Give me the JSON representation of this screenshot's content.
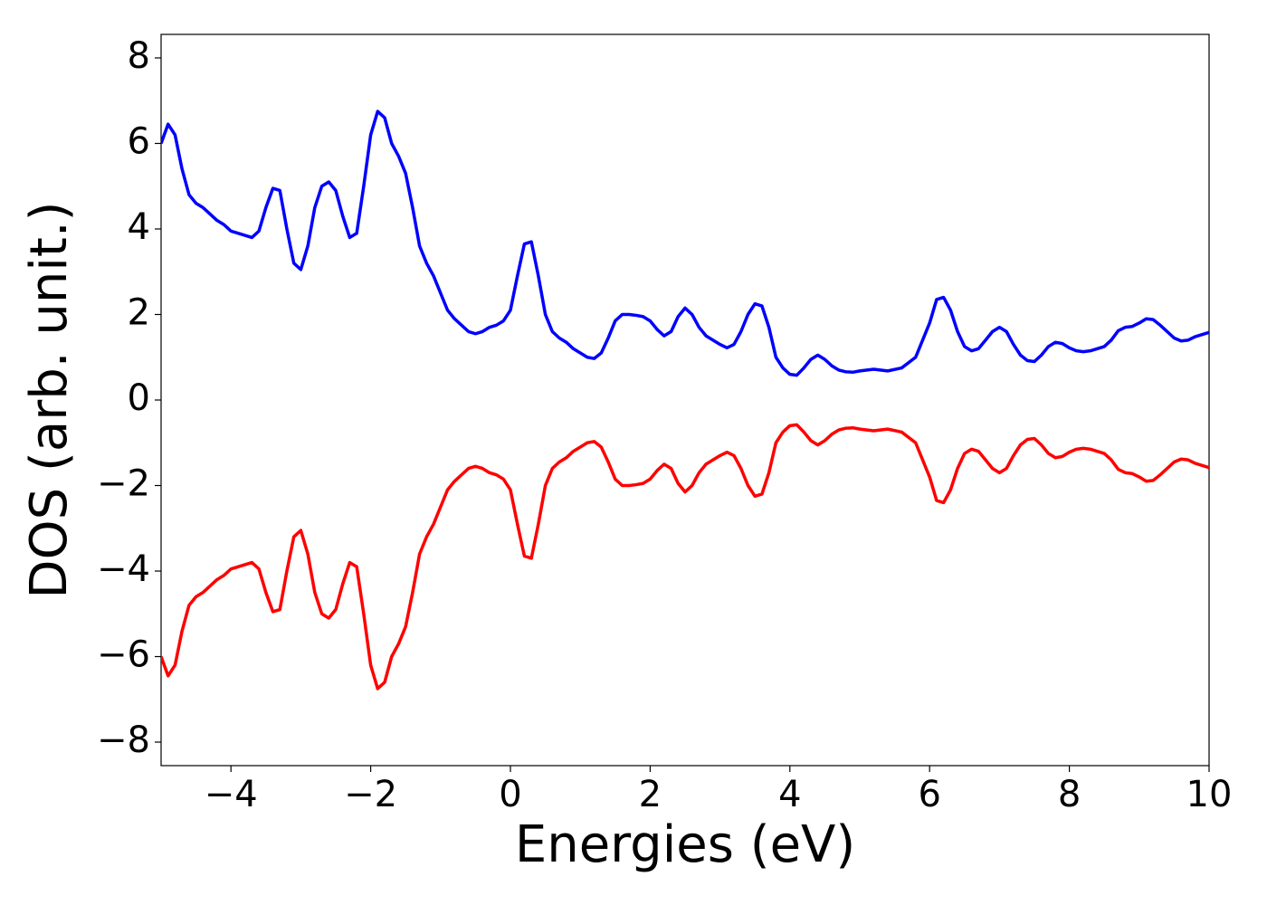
{
  "chart_data": {
    "type": "line",
    "x_label": "Energies (eV)",
    "y_label": "DOS (arb. unit.)",
    "xlim": [
      -5,
      10
    ],
    "ylim": [
      -8.55,
      8.55
    ],
    "xticks": [
      {
        "value": -4,
        "label": "−4"
      },
      {
        "value": -2,
        "label": "−2"
      },
      0,
      2,
      4,
      6,
      8,
      10
    ],
    "yticks": [
      {
        "value": -8,
        "label": "−8"
      },
      {
        "value": -6,
        "label": "−6"
      },
      {
        "value": -4,
        "label": "−4"
      },
      {
        "value": -2,
        "label": "−2"
      },
      0,
      2,
      4,
      6,
      8
    ],
    "grid": false,
    "x": [
      -5.0,
      -4.9,
      -4.8,
      -4.7,
      -4.6,
      -4.5,
      -4.4,
      -4.3,
      -4.2,
      -4.1,
      -4.0,
      -3.9,
      -3.8,
      -3.7,
      -3.6,
      -3.5,
      -3.4,
      -3.3,
      -3.2,
      -3.1,
      -3.0,
      -2.9,
      -2.8,
      -2.7,
      -2.6,
      -2.5,
      -2.4,
      -2.3,
      -2.2,
      -2.1,
      -2.0,
      -1.9,
      -1.8,
      -1.7,
      -1.6,
      -1.5,
      -1.4,
      -1.3,
      -1.2,
      -1.1,
      -1.0,
      -0.9,
      -0.8,
      -0.7,
      -0.6,
      -0.5,
      -0.4,
      -0.3,
      -0.2,
      -0.1,
      0.0,
      0.1,
      0.2,
      0.3,
      0.4,
      0.5,
      0.6,
      0.7,
      0.8,
      0.9,
      1.0,
      1.1,
      1.2,
      1.3,
      1.4,
      1.5,
      1.6,
      1.7,
      1.8,
      1.9,
      2.0,
      2.1,
      2.2,
      2.3,
      2.4,
      2.5,
      2.6,
      2.7,
      2.8,
      2.9,
      3.0,
      3.1,
      3.2,
      3.3,
      3.4,
      3.5,
      3.6,
      3.7,
      3.8,
      3.9,
      4.0,
      4.1,
      4.2,
      4.3,
      4.4,
      4.5,
      4.6,
      4.7,
      4.8,
      4.9,
      5.0,
      5.2,
      5.4,
      5.6,
      5.8,
      6.0,
      6.1,
      6.2,
      6.3,
      6.4,
      6.5,
      6.6,
      6.7,
      6.8,
      6.9,
      7.0,
      7.1,
      7.2,
      7.3,
      7.4,
      7.5,
      7.6,
      7.7,
      7.8,
      7.9,
      8.0,
      8.1,
      8.2,
      8.3,
      8.4,
      8.5,
      8.6,
      8.7,
      8.8,
      8.9,
      9.0,
      9.1,
      9.2,
      9.3,
      9.4,
      9.5,
      9.6,
      9.7,
      9.8,
      9.9,
      10.0
    ],
    "series": [
      {
        "color": "#0000ff",
        "values": [
          6.0,
          6.45,
          6.2,
          5.4,
          4.8,
          4.6,
          4.5,
          4.35,
          4.2,
          4.1,
          3.95,
          3.9,
          3.85,
          3.8,
          3.95,
          4.5,
          4.95,
          4.9,
          4.0,
          3.2,
          3.05,
          3.6,
          4.5,
          5.0,
          5.1,
          4.9,
          4.3,
          3.8,
          3.9,
          5.0,
          6.2,
          6.75,
          6.6,
          6.0,
          5.7,
          5.3,
          4.5,
          3.6,
          3.2,
          2.9,
          2.5,
          2.1,
          1.9,
          1.75,
          1.6,
          1.55,
          1.6,
          1.7,
          1.75,
          1.85,
          2.1,
          2.9,
          3.65,
          3.7,
          2.9,
          2.0,
          1.6,
          1.45,
          1.35,
          1.2,
          1.1,
          1.0,
          0.97,
          1.1,
          1.45,
          1.85,
          2.0,
          2.0,
          1.98,
          1.95,
          1.85,
          1.65,
          1.5,
          1.6,
          1.95,
          2.15,
          2.0,
          1.7,
          1.5,
          1.4,
          1.3,
          1.22,
          1.3,
          1.6,
          2.0,
          2.25,
          2.2,
          1.7,
          1.0,
          0.75,
          0.6,
          0.58,
          0.75,
          0.95,
          1.05,
          0.95,
          0.8,
          0.7,
          0.66,
          0.65,
          0.68,
          0.72,
          0.68,
          0.75,
          1.0,
          1.8,
          2.35,
          2.4,
          2.1,
          1.6,
          1.25,
          1.15,
          1.2,
          1.4,
          1.6,
          1.7,
          1.6,
          1.3,
          1.05,
          0.92,
          0.9,
          1.05,
          1.25,
          1.35,
          1.32,
          1.22,
          1.15,
          1.13,
          1.15,
          1.2,
          1.25,
          1.4,
          1.62,
          1.7,
          1.72,
          1.8,
          1.9,
          1.88,
          1.75,
          1.6,
          1.45,
          1.38,
          1.4,
          1.48,
          1.53,
          1.58
        ]
      },
      {
        "color": "#ff0000",
        "values": [
          -6.0,
          -6.45,
          -6.2,
          -5.4,
          -4.8,
          -4.6,
          -4.5,
          -4.35,
          -4.2,
          -4.1,
          -3.95,
          -3.9,
          -3.85,
          -3.8,
          -3.95,
          -4.5,
          -4.95,
          -4.9,
          -4.0,
          -3.2,
          -3.05,
          -3.6,
          -4.5,
          -5.0,
          -5.1,
          -4.9,
          -4.3,
          -3.8,
          -3.9,
          -5.0,
          -6.2,
          -6.75,
          -6.6,
          -6.0,
          -5.7,
          -5.3,
          -4.5,
          -3.6,
          -3.2,
          -2.9,
          -2.5,
          -2.1,
          -1.9,
          -1.75,
          -1.6,
          -1.55,
          -1.6,
          -1.7,
          -1.75,
          -1.85,
          -2.1,
          -2.9,
          -3.65,
          -3.7,
          -2.9,
          -2.0,
          -1.6,
          -1.45,
          -1.35,
          -1.2,
          -1.1,
          -1.0,
          -0.97,
          -1.1,
          -1.45,
          -1.85,
          -2.0,
          -2.0,
          -1.98,
          -1.95,
          -1.85,
          -1.65,
          -1.5,
          -1.6,
          -1.95,
          -2.15,
          -2.0,
          -1.7,
          -1.5,
          -1.4,
          -1.3,
          -1.22,
          -1.3,
          -1.6,
          -2.0,
          -2.25,
          -2.2,
          -1.7,
          -1.0,
          -0.75,
          -0.6,
          -0.58,
          -0.75,
          -0.95,
          -1.05,
          -0.95,
          -0.8,
          -0.7,
          -0.66,
          -0.65,
          -0.68,
          -0.72,
          -0.68,
          -0.75,
          -1.0,
          -1.8,
          -2.35,
          -2.4,
          -2.1,
          -1.6,
          -1.25,
          -1.15,
          -1.2,
          -1.4,
          -1.6,
          -1.7,
          -1.6,
          -1.3,
          -1.05,
          -0.92,
          -0.9,
          -1.05,
          -1.25,
          -1.35,
          -1.32,
          -1.22,
          -1.15,
          -1.13,
          -1.15,
          -1.2,
          -1.25,
          -1.4,
          -1.62,
          -1.7,
          -1.72,
          -1.8,
          -1.9,
          -1.88,
          -1.75,
          -1.6,
          -1.45,
          -1.38,
          -1.4,
          -1.48,
          -1.53,
          -1.58
        ]
      }
    ]
  }
}
